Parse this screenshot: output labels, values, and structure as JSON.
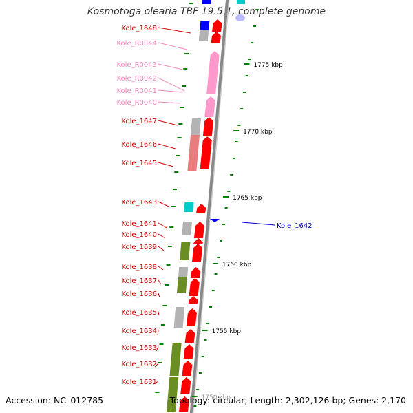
{
  "title": "Kosmotoga olearia TBF 19.5.1, complete genome",
  "accession": "Accession: NC_012785",
  "topology": "Topology: circular; Length: 2,302,126 bp; Genes: 2,170",
  "colors": {
    "cds": "#ff0000",
    "rna": "#ff99cc",
    "gene_default": "#b3b3b3",
    "cog_olive": "#6b8e23",
    "cog_blue": "#0000ff",
    "cog_cyan": "#00cccc",
    "cog_salmon": "#e97c7c",
    "backbone": "#888888",
    "tick": "#008000",
    "label_default": "#cc0000",
    "label_rna": "#ee88bb",
    "label_highlight": "#0000cc"
  },
  "icons": [
    "forward-strand-arrow",
    "reverse-strand-arrow",
    "gene-block",
    "label-leader-line"
  ],
  "scale_labels": [
    "1775 kbp",
    "1770 kbp",
    "1765 kbp",
    "1760 kbp",
    "1755 kbp",
    "1750 kbp"
  ],
  "gene_labels": [
    {
      "text": "Kole_1648",
      "kind": "cds"
    },
    {
      "text": "Kole_R0044",
      "kind": "rna"
    },
    {
      "text": "Kole_R0043",
      "kind": "rna"
    },
    {
      "text": "Kole_R0042",
      "kind": "rna"
    },
    {
      "text": "Kole_R0041",
      "kind": "rna"
    },
    {
      "text": "Kole_R0040",
      "kind": "rna"
    },
    {
      "text": "Kole_1647",
      "kind": "cds"
    },
    {
      "text": "Kole_1646",
      "kind": "cds"
    },
    {
      "text": "Kole_1645",
      "kind": "cds"
    },
    {
      "text": "Kole_1643",
      "kind": "cds"
    },
    {
      "text": "Kole_1641",
      "kind": "cds"
    },
    {
      "text": "Kole_1640",
      "kind": "cds"
    },
    {
      "text": "Kole_1639",
      "kind": "cds"
    },
    {
      "text": "Kole_1638",
      "kind": "cds"
    },
    {
      "text": "Kole_1637",
      "kind": "cds"
    },
    {
      "text": "Kole_1636",
      "kind": "cds"
    },
    {
      "text": "Kole_1635",
      "kind": "cds"
    },
    {
      "text": "Kole_1634",
      "kind": "cds"
    },
    {
      "text": "Kole_1633",
      "kind": "cds"
    },
    {
      "text": "Kole_1632",
      "kind": "cds"
    },
    {
      "text": "Kole_1631",
      "kind": "cds"
    },
    {
      "text": "Kole_1642",
      "kind": "highlight"
    }
  ]
}
